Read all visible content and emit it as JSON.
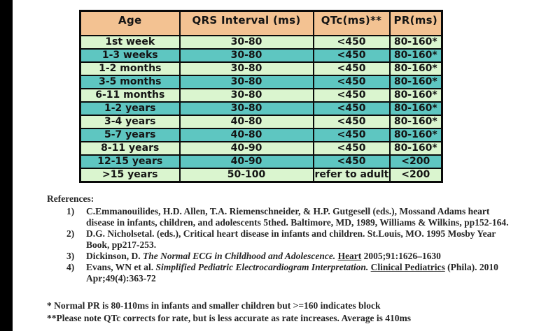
{
  "colors": {
    "left_bar": "#000000",
    "page_background": "#ffffff",
    "table_header_bg": "#f3c292",
    "table_row_light": "#daf5cf",
    "table_row_teal": "#5ec6c1",
    "table_border": "#0a0a0a",
    "text": "#262626"
  },
  "table": {
    "headers": [
      "Age",
      "QRS Interval (ms)",
      "QTc(ms)**",
      "PR(ms)"
    ],
    "rows": [
      {
        "age": "1st week",
        "qrs": "30-80",
        "qtc": "<450",
        "pr": "80-160*"
      },
      {
        "age": "1-3 weeks",
        "qrs": "30-80",
        "qtc": "<450",
        "pr": "80-160*"
      },
      {
        "age": "1-2 months",
        "qrs": "30-80",
        "qtc": "<450",
        "pr": "80-160*"
      },
      {
        "age": "3-5 months",
        "qrs": "30-80",
        "qtc": "<450",
        "pr": "80-160*"
      },
      {
        "age": "6-11 months",
        "qrs": "30-80",
        "qtc": "<450",
        "pr": "80-160*"
      },
      {
        "age": "1-2 years",
        "qrs": "30-80",
        "qtc": "<450",
        "pr": "80-160*"
      },
      {
        "age": "3-4 years",
        "qrs": "40-80",
        "qtc": "<450",
        "pr": "80-160*"
      },
      {
        "age": "5-7 years",
        "qrs": "40-80",
        "qtc": "<450",
        "pr": "80-160*"
      },
      {
        "age": "8-11 years",
        "qrs": "40-90",
        "qtc": "<450",
        "pr": "80-160*"
      },
      {
        "age": "12-15 years",
        "qrs": "40-90",
        "qtc": "<450",
        "pr": "<200"
      },
      {
        "age": ">15 years",
        "qrs": "50-100",
        "qtc": "refer to adult",
        "pr": "<200"
      }
    ]
  },
  "references": {
    "heading": "References:",
    "items": [
      {
        "num": "1)",
        "pre": "C.Emmanouilides, H.D. Allen, T.A. Riemenschneider, & H.P. Gutgesell (eds.), Mossand Adams heart disease in infants, children, and adolescents 5thed. Baltimore, MD, 1989, Williams & Wilkins, pp152-164.",
        "italic": "",
        "underline": "",
        "post": ""
      },
      {
        "num": "2)",
        "pre": "D.G. Nicholsetal. (eds.), Critical heart disease in infants and children. St.Louis, MO. 1995 Mosby Year Book, pp217-253.",
        "italic": "",
        "underline": "",
        "post": ""
      },
      {
        "num": "3)",
        "pre": "Dickinson, D. ",
        "italic": "The Normal ECG in Childhood and Adolescence. ",
        "underline": "Heart",
        "post": " 2005;91:1626–1630"
      },
      {
        "num": "4)",
        "pre": "Evans, WN et al. ",
        "italic": "Simplified Pediatric Electrocardiogram Interpretation. ",
        "underline": "Clinical Pediatrics",
        "post": " (Phila). 2010 Apr;49(4):363-72"
      }
    ]
  },
  "footnotes": [
    "* Normal PR is 80-110ms in infants and smaller children but >=160 indicates block",
    "**Please note QTc corrects for rate, but is less accurate as rate increases. Average is 410ms"
  ]
}
